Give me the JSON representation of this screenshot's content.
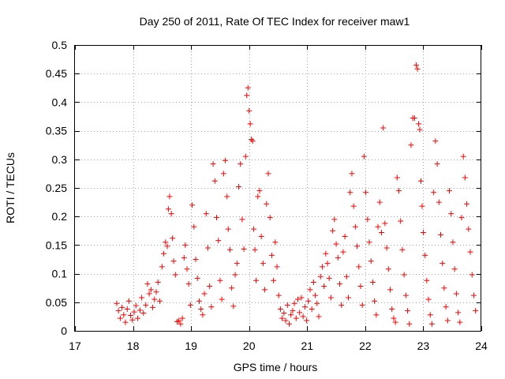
{
  "chart_data": {
    "type": "scatter",
    "title": "Day 250 of 2011, Rate Of TEC Index for receiver maw1",
    "xlabel": "GPS time / hours",
    "ylabel": "ROTI / TECUs",
    "xlim": [
      17,
      24
    ],
    "ylim": [
      0,
      0.5
    ],
    "x_ticks": [
      17,
      18,
      19,
      20,
      21,
      22,
      23,
      24
    ],
    "x_tick_labels": [
      "17",
      "18",
      "19",
      "20",
      "21",
      "22",
      "23",
      "24"
    ],
    "y_ticks": [
      0,
      0.05,
      0.1,
      0.15,
      0.2,
      0.25,
      0.3,
      0.35,
      0.4,
      0.45,
      0.5
    ],
    "y_tick_labels": [
      "0",
      "0.05",
      "0.1",
      "0.15",
      "0.2",
      "0.25",
      "0.3",
      "0.35",
      "0.4",
      "0.45",
      "0.5"
    ],
    "grid": true,
    "marker": "plus",
    "color": "#ff0000",
    "series": [
      {
        "name": "maw1",
        "points": [
          [
            17.72,
            0.048
          ],
          [
            17.75,
            0.035
          ],
          [
            17.78,
            0.022
          ],
          [
            17.81,
            0.041
          ],
          [
            17.84,
            0.028
          ],
          [
            17.87,
            0.015
          ],
          [
            17.9,
            0.038
          ],
          [
            17.93,
            0.052
          ],
          [
            17.96,
            0.027
          ],
          [
            17.99,
            0.019
          ],
          [
            18.02,
            0.033
          ],
          [
            18.05,
            0.044
          ],
          [
            18.08,
            0.022
          ],
          [
            18.12,
            0.036
          ],
          [
            18.15,
            0.058
          ],
          [
            18.18,
            0.031
          ],
          [
            18.22,
            0.045
          ],
          [
            18.25,
            0.082
          ],
          [
            18.28,
            0.065
          ],
          [
            18.31,
            0.072
          ],
          [
            18.34,
            0.041
          ],
          [
            18.37,
            0.055
          ],
          [
            18.4,
            0.068
          ],
          [
            18.43,
            0.085
          ],
          [
            18.46,
            0.052
          ],
          [
            18.5,
            0.112
          ],
          [
            18.53,
            0.135
          ],
          [
            18.56,
            0.155
          ],
          [
            18.59,
            0.148
          ],
          [
            18.61,
            0.213
          ],
          [
            18.63,
            0.235
          ],
          [
            18.66,
            0.205
          ],
          [
            18.68,
            0.162
          ],
          [
            18.7,
            0.122
          ],
          [
            18.73,
            0.098
          ],
          [
            18.76,
            0.016
          ],
          [
            18.79,
            0.018
          ],
          [
            18.82,
            0.012
          ],
          [
            18.85,
            0.022
          ],
          [
            18.88,
            0.128
          ],
          [
            18.9,
            0.15
          ],
          [
            18.93,
            0.108
          ],
          [
            18.96,
            0.082
          ],
          [
            18.99,
            0.045
          ],
          [
            19.02,
            0.22
          ],
          [
            19.05,
            0.182
          ],
          [
            19.08,
            0.125
          ],
          [
            19.11,
            0.092
          ],
          [
            19.14,
            0.052
          ],
          [
            19.17,
            0.038
          ],
          [
            19.2,
            0.028
          ],
          [
            19.23,
            0.065
          ],
          [
            19.26,
            0.205
          ],
          [
            19.29,
            0.145
          ],
          [
            19.32,
            0.078
          ],
          [
            19.35,
            0.042
          ],
          [
            19.38,
            0.292
          ],
          [
            19.41,
            0.262
          ],
          [
            19.44,
            0.198
          ],
          [
            19.47,
            0.158
          ],
          [
            19.5,
            0.088
          ],
          [
            19.53,
            0.055
          ],
          [
            19.56,
            0.275
          ],
          [
            19.59,
            0.298
          ],
          [
            19.62,
            0.235
          ],
          [
            19.64,
            0.178
          ],
          [
            19.67,
            0.142
          ],
          [
            19.7,
            0.075
          ],
          [
            19.73,
            0.043
          ],
          [
            19.76,
            0.098
          ],
          [
            19.79,
            0.118
          ],
          [
            19.82,
            0.252
          ],
          [
            19.85,
            0.292
          ],
          [
            19.88,
            0.195
          ],
          [
            19.91,
            0.143
          ],
          [
            19.94,
            0.305
          ],
          [
            19.96,
            0.412
          ],
          [
            19.98,
            0.425
          ],
          [
            20.0,
            0.385
          ],
          [
            20.02,
            0.362
          ],
          [
            20.04,
            0.335
          ],
          [
            20.06,
            0.332
          ],
          [
            20.08,
            0.178
          ],
          [
            20.1,
            0.142
          ],
          [
            20.12,
            0.088
          ],
          [
            20.15,
            0.235
          ],
          [
            20.18,
            0.245
          ],
          [
            20.21,
            0.165
          ],
          [
            20.24,
            0.118
          ],
          [
            20.27,
            0.072
          ],
          [
            20.3,
            0.222
          ],
          [
            20.33,
            0.275
          ],
          [
            20.36,
            0.198
          ],
          [
            20.39,
            0.132
          ],
          [
            20.42,
            0.088
          ],
          [
            20.45,
            0.155
          ],
          [
            20.48,
            0.112
          ],
          [
            20.51,
            0.062
          ],
          [
            20.54,
            0.038
          ],
          [
            20.57,
            0.022
          ],
          [
            20.6,
            0.031
          ],
          [
            20.63,
            0.018
          ],
          [
            20.66,
            0.045
          ],
          [
            20.69,
            0.012
          ],
          [
            20.72,
            0.028
          ],
          [
            20.75,
            0.035
          ],
          [
            20.78,
            0.048
          ],
          [
            20.81,
            0.022
          ],
          [
            20.84,
            0.055
          ],
          [
            20.87,
            0.032
          ],
          [
            20.9,
            0.058
          ],
          [
            20.93,
            0.025
          ],
          [
            20.96,
            0.042
          ],
          [
            20.99,
            0.018
          ],
          [
            21.02,
            0.052
          ],
          [
            21.05,
            0.072
          ],
          [
            21.08,
            0.038
          ],
          [
            21.11,
            0.085
          ],
          [
            21.14,
            0.062
          ],
          [
            21.17,
            0.048
          ],
          [
            21.2,
            0.025
          ],
          [
            21.23,
            0.095
          ],
          [
            21.26,
            0.112
          ],
          [
            21.29,
            0.078
          ],
          [
            21.32,
            0.135
          ],
          [
            21.35,
            0.118
          ],
          [
            21.38,
            0.092
          ],
          [
            21.41,
            0.058
          ],
          [
            21.44,
            0.175
          ],
          [
            21.47,
            0.195
          ],
          [
            21.5,
            0.152
          ],
          [
            21.53,
            0.128
          ],
          [
            21.56,
            0.082
          ],
          [
            21.59,
            0.045
          ],
          [
            21.62,
            0.138
          ],
          [
            21.65,
            0.165
          ],
          [
            21.68,
            0.095
          ],
          [
            21.71,
            0.058
          ],
          [
            21.74,
            0.242
          ],
          [
            21.77,
            0.275
          ],
          [
            21.8,
            0.218
          ],
          [
            21.83,
            0.182
          ],
          [
            21.86,
            0.148
          ],
          [
            21.89,
            0.112
          ],
          [
            21.92,
            0.078
          ],
          [
            21.95,
            0.045
          ],
          [
            21.98,
            0.305
          ],
          [
            22.01,
            0.242
          ],
          [
            22.04,
            0.195
          ],
          [
            22.07,
            0.155
          ],
          [
            22.1,
            0.122
          ],
          [
            22.13,
            0.085
          ],
          [
            22.16,
            0.052
          ],
          [
            22.19,
            0.028
          ],
          [
            22.22,
            0.182
          ],
          [
            22.25,
            0.225
          ],
          [
            22.28,
            0.172
          ],
          [
            22.31,
            0.355
          ],
          [
            22.34,
            0.188
          ],
          [
            22.37,
            0.145
          ],
          [
            22.4,
            0.108
          ],
          [
            22.43,
            0.072
          ],
          [
            22.46,
            0.038
          ],
          [
            22.49,
            0.022
          ],
          [
            22.52,
            0.015
          ],
          [
            22.55,
            0.268
          ],
          [
            22.58,
            0.245
          ],
          [
            22.61,
            0.192
          ],
          [
            22.64,
            0.142
          ],
          [
            22.67,
            0.098
          ],
          [
            22.7,
            0.062
          ],
          [
            22.73,
            0.035
          ],
          [
            22.76,
            0.012
          ],
          [
            22.79,
            0.325
          ],
          [
            22.82,
            0.372
          ],
          [
            22.85,
            0.372
          ],
          [
            22.88,
            0.465
          ],
          [
            22.9,
            0.458
          ],
          [
            22.92,
            0.362
          ],
          [
            22.94,
            0.352
          ],
          [
            22.96,
            0.262
          ],
          [
            22.98,
            0.218
          ],
          [
            23.0,
            0.172
          ],
          [
            23.03,
            0.132
          ],
          [
            23.06,
            0.088
          ],
          [
            23.09,
            0.055
          ],
          [
            23.12,
            0.028
          ],
          [
            23.15,
            0.012
          ],
          [
            23.18,
            0.242
          ],
          [
            23.21,
            0.332
          ],
          [
            23.24,
            0.292
          ],
          [
            23.27,
            0.225
          ],
          [
            23.3,
            0.168
          ],
          [
            23.33,
            0.118
          ],
          [
            23.36,
            0.075
          ],
          [
            23.39,
            0.042
          ],
          [
            23.42,
            0.018
          ],
          [
            23.45,
            0.245
          ],
          [
            23.48,
            0.205
          ],
          [
            23.51,
            0.155
          ],
          [
            23.54,
            0.108
          ],
          [
            23.57,
            0.065
          ],
          [
            23.6,
            0.032
          ],
          [
            23.63,
            0.015
          ],
          [
            23.66,
            0.198
          ],
          [
            23.69,
            0.305
          ],
          [
            23.72,
            0.268
          ],
          [
            23.75,
            0.222
          ],
          [
            23.78,
            0.178
          ],
          [
            23.81,
            0.138
          ],
          [
            23.84,
            0.098
          ],
          [
            23.87,
            0.062
          ],
          [
            23.9,
            0.035
          ]
        ]
      }
    ]
  }
}
